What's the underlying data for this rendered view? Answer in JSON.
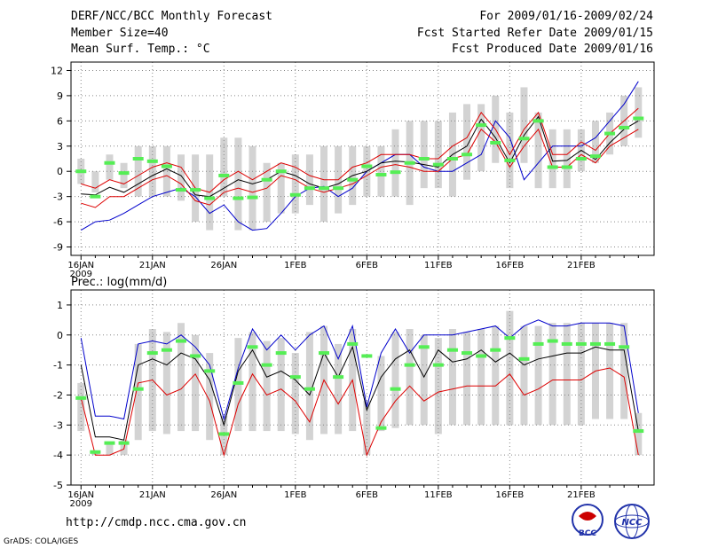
{
  "header": {
    "left_line1": "DERF/NCC/BCC Monthly Forecast",
    "left_line2": "Member Size=40",
    "left_line3": "Mean Surf. Temp.: °C",
    "right_line1": "For 2009/01/16-2009/02/24",
    "right_line2": "Fcst Started Refer Date 2009/01/15",
    "right_line3": "Fcst Produced Date 2009/01/16"
  },
  "footer": {
    "url": "http://cmdp.ncc.cma.gov.cn",
    "credit": "GrADS: COLA/IGES",
    "logo1_text": "BCC",
    "logo2_text": "NCC"
  },
  "colors": {
    "max": "#0000cc",
    "mean": "#000000",
    "pct": "#dd0000",
    "box": "#d3d3d3",
    "obs": "#55ee55",
    "grid": "#888888"
  },
  "chart_data": [
    {
      "type": "box",
      "title": "Mean Surf. Temp.: °C",
      "ylim": [
        -10,
        13
      ],
      "yticks": [
        -9,
        -6,
        -3,
        0,
        3,
        6,
        9,
        12
      ],
      "xticks": [
        "16JAN",
        "21JAN",
        "26JAN",
        "1FEB",
        "6FEB",
        "11FEB",
        "16FEB",
        "21FEB"
      ],
      "xtick_index": [
        0,
        5,
        10,
        15,
        20,
        25,
        30,
        35
      ],
      "xsub": "2009",
      "series": {
        "box_low": [
          -1.5,
          -2.5,
          -1,
          -2,
          -3,
          -3,
          -3,
          -3.5,
          -6,
          -7,
          -3,
          -7,
          -7,
          -6,
          -5,
          -5,
          -4,
          -6,
          -5,
          -4,
          -3,
          -3,
          -3,
          -4,
          -2,
          -2,
          -3,
          -1,
          0,
          1,
          -2,
          1,
          -2,
          -2,
          -2,
          0,
          1,
          2,
          3,
          4
        ],
        "box_high": [
          1.5,
          0,
          2,
          1,
          3,
          3,
          3,
          2,
          2,
          2,
          4,
          4,
          3,
          1,
          1,
          2,
          2,
          3,
          3,
          3,
          3,
          3,
          5,
          6,
          6,
          6,
          7,
          8,
          8,
          9,
          7,
          10,
          7,
          5,
          5,
          5,
          6,
          7,
          9,
          10
        ],
        "max": [
          -7,
          -6,
          -5.8,
          -5,
          -4,
          -3,
          -2.5,
          -2,
          -3,
          -5,
          -4,
          -6,
          -7,
          -6.8,
          -5,
          -3,
          -2,
          -1.8,
          -3,
          -2,
          0,
          1,
          2,
          2,
          0.5,
          0,
          0,
          1,
          2,
          6,
          4,
          -1,
          1,
          3,
          3,
          3,
          4,
          6,
          8,
          10.7
        ],
        "mean": [
          -2.7,
          -2.8,
          -1.9,
          -2.5,
          -1.5,
          -0.5,
          0.3,
          -0.5,
          -2.8,
          -3,
          -2,
          -1,
          -1.5,
          -1,
          0,
          -0.5,
          -1.5,
          -2,
          -1.5,
          -0.5,
          0,
          1,
          1.2,
          1.1,
          0.8,
          0.5,
          2,
          3,
          6.2,
          4,
          1,
          4.3,
          6.5,
          1.2,
          1.3,
          2.5,
          1.4,
          3.4,
          5,
          6
        ],
        "p_low": [
          -3.8,
          -4.3,
          -3,
          -3,
          -2,
          -1,
          -0.5,
          -1.5,
          -3.5,
          -4,
          -2.5,
          -2,
          -2.5,
          -2,
          -0.5,
          -1,
          -2,
          -2.5,
          -2,
          -1.5,
          -0.5,
          0.5,
          0.8,
          0.5,
          0,
          0,
          1.5,
          2,
          5,
          3.5,
          0.5,
          3,
          5,
          0.5,
          0.5,
          2,
          1,
          3,
          4,
          5
        ],
        "p_high": [
          -1.5,
          -2,
          -1,
          -1.5,
          -0.5,
          0.5,
          1,
          0.5,
          -2,
          -2.5,
          -1,
          0,
          -1,
          0,
          1,
          0.5,
          -0.5,
          -1,
          -1,
          0.5,
          1,
          2,
          2,
          2,
          1.5,
          1.5,
          3,
          4,
          7,
          5,
          2,
          5,
          7,
          2,
          2,
          3.5,
          2.5,
          4.5,
          6,
          7.5
        ],
        "obs": [
          0,
          -3,
          1,
          -0.2,
          1.5,
          1.2,
          0.6,
          -2.2,
          -2.2,
          -3.2,
          -0.5,
          -3.2,
          -3.1,
          -1,
          0,
          -2.8,
          -2,
          -2,
          -2,
          -1,
          0.6,
          -0.4,
          -0.1,
          1,
          1.5,
          0.8,
          1.5,
          2,
          5.5,
          3.4,
          1.3,
          3.9,
          6,
          0.5,
          0.5,
          1.5,
          1.8,
          4.5,
          5.2,
          6.3
        ]
      }
    },
    {
      "type": "box",
      "title": "Prec.: log(mm/d)",
      "ylim": [
        -5,
        1.5
      ],
      "yticks": [
        -5,
        -4,
        -3,
        -2,
        -1,
        0,
        1
      ],
      "xticks": [
        "16JAN",
        "21JAN",
        "26JAN",
        "1FEB",
        "6FEB",
        "11FEB",
        "16FEB",
        "21FEB"
      ],
      "xtick_index": [
        0,
        5,
        10,
        15,
        20,
        25,
        30,
        35
      ],
      "xsub": "2009",
      "series": {
        "box_low": [
          -3.2,
          -4,
          -4,
          -4,
          -3.5,
          -3.2,
          -3.3,
          -3.2,
          -3.2,
          -3.5,
          -4,
          -3.2,
          -3.2,
          -3.2,
          -3.2,
          -3.3,
          -3.5,
          -3.3,
          -3.3,
          -3.2,
          -4,
          -3.2,
          -3.1,
          -3,
          -3,
          -3.3,
          -3,
          -3,
          -3,
          -3,
          -3,
          -3,
          -3,
          -3,
          -3,
          -3,
          -2.8,
          -2.8,
          -2.8,
          -4
        ],
        "box_high": [
          -1.6,
          -3.9,
          -3.6,
          -3.5,
          -0.3,
          0.2,
          0.1,
          0.4,
          0,
          -0.6,
          -2.7,
          -0.1,
          0.1,
          -0.2,
          -0.1,
          -0.6,
          0.1,
          0.3,
          -0.3,
          0.2,
          -2.2,
          -0.7,
          0.1,
          0.2,
          0,
          -0.1,
          0.2,
          0.1,
          0.2,
          0.3,
          0.8,
          0.3,
          0.3,
          0.4,
          0.4,
          0.4,
          0.4,
          0.4,
          0.4,
          -2.6
        ],
        "max": [
          -0.1,
          -2.7,
          -2.7,
          -2.8,
          -0.3,
          -0.2,
          -0.3,
          0,
          -0.4,
          -1,
          -2.8,
          -1.1,
          0.2,
          -0.5,
          0,
          -0.5,
          0,
          0.3,
          -0.8,
          0.3,
          -2.4,
          -0.6,
          0.2,
          -0.6,
          0,
          0,
          0,
          0.1,
          0.2,
          0.3,
          -0.1,
          0.3,
          0.5,
          0.3,
          0.3,
          0.4,
          0.4,
          0.4,
          0.3,
          -2.6
        ],
        "mean": [
          -1,
          -3.4,
          -3.4,
          -3.5,
          -1,
          -0.8,
          -1,
          -0.6,
          -0.8,
          -1.5,
          -3,
          -1.2,
          -0.5,
          -1.4,
          -1.2,
          -1.5,
          -2,
          -0.6,
          -1.4,
          -0.4,
          -2.5,
          -1.4,
          -0.8,
          -0.5,
          -1.4,
          -0.5,
          -0.9,
          -0.8,
          -0.5,
          -0.9,
          -0.6,
          -1,
          -0.8,
          -0.7,
          -0.6,
          -0.6,
          -0.4,
          -0.5,
          -0.5,
          -3.2
        ],
        "p_low": [
          -2.1,
          -4,
          -4,
          -3.8,
          -1.6,
          -1.5,
          -2,
          -1.8,
          -1.3,
          -2.2,
          -4,
          -2.3,
          -1.3,
          -2,
          -1.8,
          -2.2,
          -2.9,
          -1.5,
          -2.3,
          -1.5,
          -4,
          -2.9,
          -2.2,
          -1.7,
          -2.2,
          -1.9,
          -1.8,
          -1.7,
          -1.7,
          -1.7,
          -1.3,
          -2,
          -1.8,
          -1.5,
          -1.5,
          -1.5,
          -1.2,
          -1.1,
          -1.4,
          -4
        ],
        "obs": [
          -2.1,
          -3.9,
          -3.6,
          -3.6,
          -1.8,
          -0.6,
          -0.5,
          -0.2,
          -0.7,
          -1.2,
          -3.3,
          -1.6,
          -0.4,
          -1,
          -0.6,
          -1.4,
          -1.8,
          -0.6,
          -1.4,
          -0.3,
          -0.7,
          -3.1,
          -1.8,
          -1,
          -0.4,
          -1,
          -0.5,
          -0.6,
          -0.7,
          -0.5,
          -0.1,
          -0.8,
          -0.3,
          -0.2,
          -0.3,
          -0.3,
          -0.3,
          -0.3,
          -0.4,
          -3.2
        ]
      }
    }
  ]
}
